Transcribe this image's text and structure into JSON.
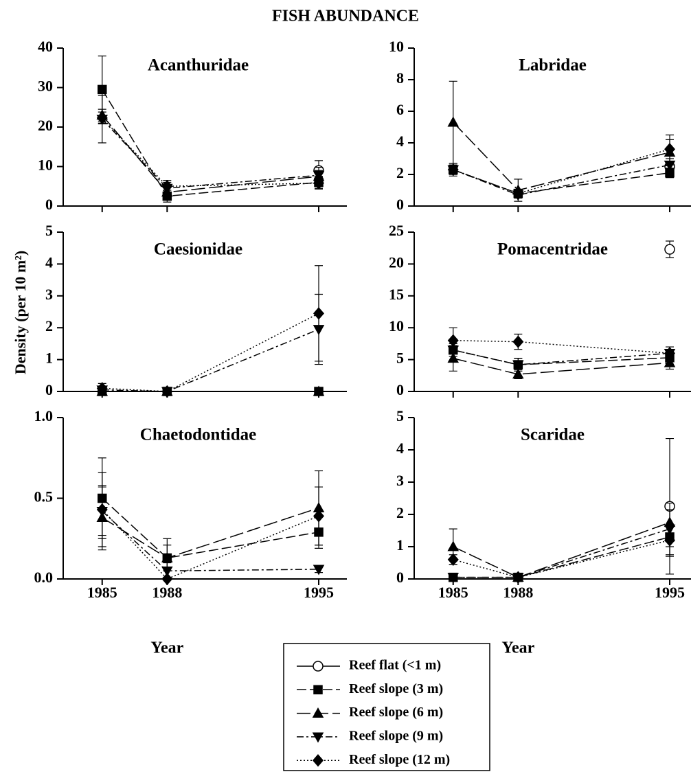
{
  "title": "FISH ABUNDANCE",
  "ylabel": "Density (per 10 m²)",
  "color": "#000000",
  "legend": [
    {
      "name": "Reef flat (<1 m)",
      "marker": "circle",
      "dash": "none"
    },
    {
      "name": "Reef slope (3 m)",
      "marker": "square",
      "dash": "14 5"
    },
    {
      "name": "Reef slope (6 m)",
      "marker": "triangle",
      "dash": "20 6"
    },
    {
      "name": "Reef slope (9 m)",
      "marker": "triangle-down",
      "dash": "10 4 3 4"
    },
    {
      "name": "Reef slope (12 m)",
      "marker": "diamond",
      "dash": "2 3"
    }
  ],
  "chart_data": [
    {
      "type": "line",
      "title": "Acanthuridae",
      "x": [
        1985,
        1988,
        1995
      ],
      "xlim": [
        1983.2,
        1996.3
      ],
      "ylim": [
        0,
        40
      ],
      "yticks": [
        0,
        10,
        20,
        30,
        40
      ],
      "series": [
        {
          "values": [
            null,
            null,
            9
          ],
          "errors": [
            null,
            null,
            2.5
          ]
        },
        {
          "values": [
            29.5,
            2.5,
            6
          ],
          "errors": [
            8.5,
            1.5,
            1.5
          ]
        },
        {
          "values": [
            23,
            3.5,
            7.5
          ],
          "errors": [
            1.5,
            1.5,
            1.5
          ]
        },
        {
          "values": [
            22,
            4.5,
            7.8
          ],
          "errors": [
            6,
            1.5,
            2
          ]
        },
        {
          "values": [
            22.3,
            5,
            5.8
          ],
          "errors": [
            1.5,
            1.5,
            1.5
          ]
        }
      ]
    },
    {
      "type": "line",
      "title": "Labridae",
      "x": [
        1985,
        1988,
        1995
      ],
      "xlim": [
        1983.2,
        1996.3
      ],
      "ylim": [
        0,
        10
      ],
      "yticks": [
        0,
        2,
        4,
        6,
        8,
        10
      ],
      "series": [
        {
          "values": [
            null,
            null,
            2.5
          ],
          "errors": [
            null,
            null,
            0.3
          ]
        },
        {
          "values": [
            2.3,
            0.8,
            2.1
          ],
          "errors": [
            0.4,
            0.2,
            0.3
          ]
        },
        {
          "values": [
            5.3,
            1.0,
            3.4
          ],
          "errors": [
            2.6,
            0.7,
            0.8
          ]
        },
        {
          "values": [
            2.3,
            0.7,
            2.6
          ],
          "errors": [
            0.3,
            0.2,
            0.4
          ]
        },
        {
          "values": [
            2.3,
            0.8,
            3.6
          ],
          "errors": [
            0.3,
            0.2,
            0.9
          ]
        }
      ]
    },
    {
      "type": "line",
      "title": "Caesionidae",
      "x": [
        1985,
        1988,
        1995
      ],
      "xlim": [
        1983.2,
        1996.3
      ],
      "ylim": [
        0,
        5
      ],
      "yticks": [
        0,
        1,
        2,
        3,
        4,
        5
      ],
      "series": [
        {
          "values": [
            null,
            null,
            null
          ],
          "errors": [
            null,
            null,
            null
          ]
        },
        {
          "values": [
            0,
            0,
            0
          ],
          "errors": [
            0.05,
            0,
            0
          ]
        },
        {
          "values": [
            0,
            0,
            0
          ],
          "errors": [
            0.05,
            0,
            0
          ]
        },
        {
          "values": [
            0.05,
            0,
            1.95
          ],
          "errors": [
            0.1,
            0,
            1.1
          ]
        },
        {
          "values": [
            0.1,
            0,
            2.45
          ],
          "errors": [
            0.15,
            0,
            1.5
          ]
        }
      ]
    },
    {
      "type": "line",
      "title": "Pomacentridae",
      "x": [
        1985,
        1988,
        1995
      ],
      "xlim": [
        1983.2,
        1996.3
      ],
      "ylim": [
        0,
        25
      ],
      "yticks": [
        0,
        5,
        10,
        15,
        20,
        25
      ],
      "series": [
        {
          "values": [
            null,
            null,
            22.3
          ],
          "errors": [
            null,
            null,
            1.3
          ]
        },
        {
          "values": [
            6.5,
            4.2,
            5.3
          ],
          "errors": [
            1,
            1,
            1
          ]
        },
        {
          "values": [
            5.2,
            2.7,
            4.5
          ],
          "errors": [
            2,
            0.7,
            1
          ]
        },
        {
          "values": [
            6.5,
            4.2,
            6
          ],
          "errors": [
            1,
            1,
            1
          ]
        },
        {
          "values": [
            8,
            7.8,
            6
          ],
          "errors": [
            2,
            1.2,
            1
          ]
        }
      ]
    },
    {
      "type": "line",
      "title": "Chaetodontidae",
      "x": [
        1985,
        1988,
        1995
      ],
      "xlim": [
        1983.2,
        1996.3
      ],
      "xticks": [
        1985,
        1988,
        1995
      ],
      "xlabel": "Year",
      "ylim": [
        0,
        1
      ],
      "yticks": [
        {
          "value": 0,
          "label": "0.0"
        },
        0.5,
        {
          "value": 1,
          "label": "1.0"
        }
      ],
      "series": [
        {
          "values": [
            null,
            null,
            null
          ],
          "errors": [
            null,
            null,
            null
          ]
        },
        {
          "values": [
            0.5,
            0.13,
            0.29
          ],
          "errors": [
            0.25,
            0.12,
            0.1
          ]
        },
        {
          "values": [
            0.38,
            0.13,
            0.44
          ],
          "errors": [
            0.2,
            0.08,
            0.23
          ]
        },
        {
          "values": [
            0.42,
            0.05,
            0.06
          ],
          "errors": [
            0.15,
            0.05,
            0.02
          ]
        },
        {
          "values": [
            0.43,
            0,
            0.39
          ],
          "errors": [
            0.23,
            0,
            0.18
          ]
        }
      ]
    },
    {
      "type": "line",
      "title": "Scaridae",
      "x": [
        1985,
        1988,
        1995
      ],
      "xlim": [
        1983.2,
        1996.3
      ],
      "xticks": [
        1985,
        1988,
        1995
      ],
      "xlabel": "Year",
      "ylim": [
        0,
        5
      ],
      "yticks": [
        0,
        1,
        2,
        3,
        4,
        5
      ],
      "series": [
        {
          "values": [
            null,
            null,
            2.25
          ],
          "errors": [
            null,
            null,
            2.1
          ]
        },
        {
          "values": [
            0.05,
            0.05,
            1.3
          ],
          "errors": [
            0.05,
            0.05,
            0.3
          ]
        },
        {
          "values": [
            1.0,
            0.05,
            1.75
          ],
          "errors": [
            0.55,
            0.05,
            0.4
          ]
        },
        {
          "values": [
            0.05,
            0.05,
            1.55
          ],
          "errors": [
            0.05,
            0.05,
            0.8
          ]
        },
        {
          "values": [
            0.6,
            0.05,
            1.2
          ],
          "errors": [
            0.15,
            0.05,
            0.5
          ]
        }
      ]
    }
  ]
}
